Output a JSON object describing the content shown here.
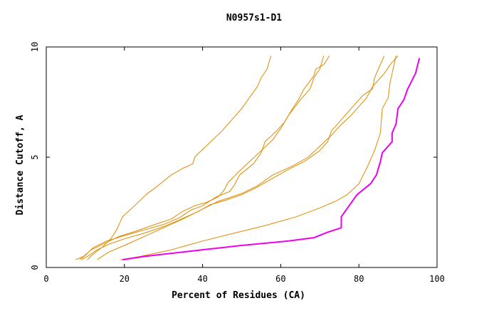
{
  "chart_data": {
    "type": "line",
    "title": "N0957s1-D1",
    "xlabel": "Percent of Residues (CA)",
    "ylabel": "Distance Cutoff, A",
    "xlim": [
      0,
      100
    ],
    "ylim": [
      0,
      10
    ],
    "x_ticks": [
      "0",
      "20",
      "40",
      "60",
      "80",
      "100"
    ],
    "y_ticks": [
      "0",
      "5",
      "10"
    ],
    "grid": false,
    "legend": "none",
    "series": [
      {
        "color": "#e08a00",
        "points": [
          [
            10.5,
            0.35
          ],
          [
            12,
            0.6
          ],
          [
            14.5,
            0.95
          ],
          [
            16.5,
            1.3
          ],
          [
            18,
            1.7
          ],
          [
            19.5,
            2.3
          ],
          [
            22,
            2.7
          ],
          [
            25.5,
            3.3
          ],
          [
            28.5,
            3.7
          ],
          [
            32,
            4.2
          ],
          [
            35,
            4.5
          ],
          [
            37.5,
            4.7
          ],
          [
            38,
            5.0
          ],
          [
            38.5,
            5.1
          ],
          [
            41.5,
            5.6
          ],
          [
            45,
            6.2
          ],
          [
            50,
            7.2
          ],
          [
            52,
            7.7
          ],
          [
            54,
            8.2
          ],
          [
            55,
            8.6
          ],
          [
            56.5,
            9.0
          ],
          [
            57.5,
            9.6
          ]
        ]
      },
      {
        "color": "#e08a00",
        "points": [
          [
            7.5,
            0.35
          ],
          [
            9.5,
            0.5
          ],
          [
            11.5,
            0.8
          ],
          [
            15,
            1.1
          ],
          [
            18.5,
            1.4
          ],
          [
            23,
            1.65
          ],
          [
            27,
            1.9
          ],
          [
            32,
            2.2
          ],
          [
            35,
            2.55
          ],
          [
            38,
            2.8
          ],
          [
            41,
            2.95
          ],
          [
            44,
            3.2
          ],
          [
            45.5,
            3.5
          ],
          [
            46.5,
            3.85
          ],
          [
            49,
            4.3
          ],
          [
            52,
            4.8
          ],
          [
            55,
            5.3
          ],
          [
            58,
            5.8
          ],
          [
            60,
            6.3
          ],
          [
            62,
            6.9
          ],
          [
            65,
            7.6
          ],
          [
            67.5,
            8.1
          ],
          [
            68.5,
            8.6
          ],
          [
            70,
            9.0
          ],
          [
            71,
            9.6
          ]
        ]
      },
      {
        "color": "#e08a00",
        "points": [
          [
            8.5,
            0.35
          ],
          [
            10,
            0.55
          ],
          [
            12,
            0.9
          ],
          [
            15.5,
            1.2
          ],
          [
            20,
            1.45
          ],
          [
            25,
            1.7
          ],
          [
            30,
            1.95
          ],
          [
            34,
            2.25
          ],
          [
            37,
            2.6
          ],
          [
            40,
            2.8
          ],
          [
            43.5,
            3.2
          ],
          [
            47,
            3.45
          ],
          [
            48,
            3.7
          ],
          [
            49.5,
            4.2
          ],
          [
            53,
            4.7
          ],
          [
            55,
            5.2
          ],
          [
            56,
            5.7
          ],
          [
            59,
            6.2
          ],
          [
            61,
            6.6
          ],
          [
            63,
            7.2
          ],
          [
            64.5,
            7.6
          ],
          [
            66,
            8.1
          ],
          [
            68.5,
            8.7
          ],
          [
            69,
            9.0
          ],
          [
            71,
            9.2
          ],
          [
            72.5,
            9.6
          ]
        ]
      },
      {
        "color": "#e08a00",
        "points": [
          [
            9,
            0.35
          ],
          [
            11,
            0.55
          ],
          [
            13,
            0.8
          ],
          [
            16,
            1.05
          ],
          [
            20,
            1.3
          ],
          [
            25,
            1.55
          ],
          [
            30,
            1.85
          ],
          [
            34,
            2.15
          ],
          [
            39,
            2.55
          ],
          [
            42,
            2.85
          ],
          [
            46,
            3.05
          ],
          [
            50,
            3.3
          ],
          [
            54,
            3.65
          ],
          [
            58,
            4.05
          ],
          [
            62,
            4.45
          ],
          [
            66,
            4.8
          ],
          [
            70,
            5.3
          ],
          [
            72,
            5.7
          ],
          [
            73,
            6.2
          ],
          [
            75,
            6.6
          ],
          [
            77,
            7.0
          ],
          [
            79,
            7.4
          ],
          [
            81,
            7.8
          ],
          [
            83.5,
            8.1
          ],
          [
            84,
            8.6
          ],
          [
            85,
            9.0
          ],
          [
            86.5,
            9.6
          ]
        ]
      },
      {
        "color": "#e08a00",
        "points": [
          [
            13,
            0.35
          ],
          [
            16,
            0.7
          ],
          [
            20,
            1.0
          ],
          [
            25,
            1.4
          ],
          [
            30,
            1.8
          ],
          [
            35,
            2.2
          ],
          [
            40,
            2.65
          ],
          [
            44,
            3.0
          ],
          [
            50,
            3.35
          ],
          [
            54,
            3.7
          ],
          [
            58,
            4.2
          ],
          [
            63,
            4.6
          ],
          [
            67,
            5.0
          ],
          [
            70,
            5.5
          ],
          [
            73,
            6.0
          ],
          [
            75,
            6.4
          ],
          [
            78,
            6.9
          ],
          [
            80,
            7.3
          ],
          [
            82,
            7.7
          ],
          [
            83.5,
            8.2
          ],
          [
            85,
            8.5
          ],
          [
            86.5,
            8.8
          ],
          [
            88,
            9.2
          ],
          [
            90,
            9.6
          ]
        ]
      },
      {
        "color": "#e08a00",
        "points": [
          [
            19,
            0.35
          ],
          [
            24,
            0.5
          ],
          [
            32,
            0.8
          ],
          [
            40,
            1.2
          ],
          [
            48,
            1.55
          ],
          [
            56,
            1.9
          ],
          [
            64,
            2.3
          ],
          [
            70,
            2.7
          ],
          [
            74,
            3.0
          ],
          [
            77,
            3.3
          ],
          [
            80,
            3.8
          ],
          [
            82,
            4.5
          ],
          [
            84,
            5.3
          ],
          [
            85.5,
            6.1
          ],
          [
            86,
            7.2
          ],
          [
            87.5,
            7.7
          ],
          [
            88,
            8.4
          ],
          [
            88.5,
            8.8
          ],
          [
            89.5,
            9.6
          ]
        ]
      },
      {
        "color": "#ee00ee",
        "width": 2,
        "points": [
          [
            19.5,
            0.35
          ],
          [
            25,
            0.5
          ],
          [
            35,
            0.7
          ],
          [
            50,
            1.0
          ],
          [
            62,
            1.2
          ],
          [
            68.5,
            1.35
          ],
          [
            72,
            1.6
          ],
          [
            75.5,
            1.8
          ],
          [
            75.5,
            2.3
          ],
          [
            77.5,
            2.8
          ],
          [
            79.5,
            3.3
          ],
          [
            83,
            3.8
          ],
          [
            84.5,
            4.2
          ],
          [
            85.5,
            4.8
          ],
          [
            86,
            5.2
          ],
          [
            88,
            5.6
          ],
          [
            88.5,
            5.7
          ],
          [
            88.5,
            6.1
          ],
          [
            89.5,
            6.5
          ],
          [
            90,
            7.2
          ],
          [
            91.5,
            7.6
          ],
          [
            92.5,
            8.1
          ],
          [
            94.5,
            8.8
          ],
          [
            95.5,
            9.5
          ]
        ]
      }
    ]
  }
}
